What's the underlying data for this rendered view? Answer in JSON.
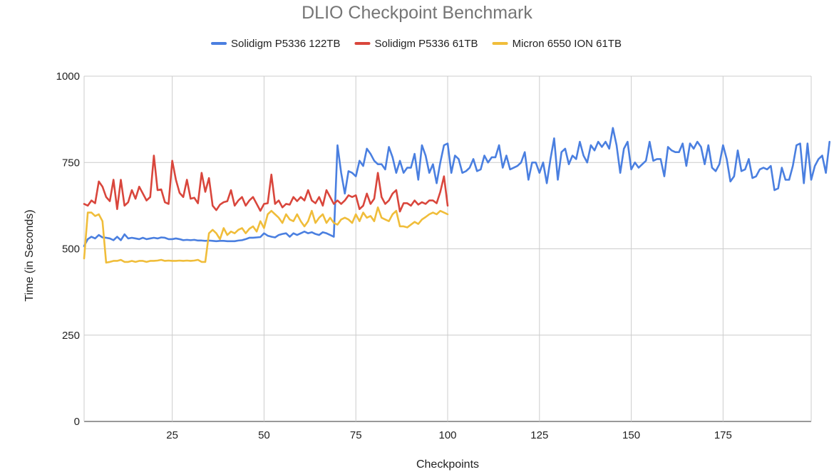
{
  "chart_data": {
    "type": "line",
    "title": "DLIO Checkpoint Benchmark",
    "xlabel": "Checkpoints",
    "ylabel": "Time (in Seconds)",
    "xlim": [
      1,
      199
    ],
    "ylim": [
      0,
      1000
    ],
    "x_ticks": [
      "25",
      "50",
      "75",
      "100",
      "125",
      "150",
      "175"
    ],
    "x_tick_values": [
      25,
      50,
      75,
      100,
      125,
      150,
      175
    ],
    "y_ticks": [
      "0",
      "250",
      "500",
      "750",
      "1000"
    ],
    "y_tick_values": [
      0,
      250,
      500,
      750,
      1000
    ],
    "grid": true,
    "legend_position": "top",
    "series": [
      {
        "name": "Solidigm P5336 122TB",
        "color": "#4a7fe0",
        "values": [
          508,
          528,
          535,
          530,
          540,
          533,
          532,
          530,
          525,
          535,
          525,
          542,
          530,
          532,
          530,
          528,
          532,
          528,
          530,
          532,
          530,
          533,
          532,
          528,
          528,
          530,
          528,
          525,
          526,
          525,
          526,
          524,
          524,
          523,
          524,
          523,
          522,
          523,
          523,
          522,
          522,
          522,
          524,
          525,
          528,
          532,
          532,
          533,
          534,
          545,
          538,
          535,
          533,
          540,
          543,
          545,
          535,
          545,
          540,
          545,
          550,
          545,
          548,
          543,
          540,
          548,
          545,
          540,
          535,
          800,
          720,
          660,
          725,
          720,
          710,
          755,
          740,
          790,
          775,
          755,
          745,
          745,
          730,
          795,
          765,
          720,
          755,
          720,
          735,
          735,
          775,
          700,
          800,
          770,
          720,
          745,
          690,
          750,
          800,
          805,
          720,
          770,
          760,
          720,
          725,
          735,
          760,
          725,
          730,
          770,
          750,
          765,
          765,
          800,
          735,
          770,
          730,
          735,
          740,
          750,
          780,
          700,
          750,
          750,
          720,
          750,
          690,
          760,
          820,
          700,
          780,
          790,
          745,
          770,
          760,
          810,
          770,
          750,
          800,
          785,
          810,
          795,
          810,
          790,
          850,
          800,
          720,
          790,
          810,
          730,
          750,
          735,
          745,
          755,
          810,
          755,
          760,
          760,
          710,
          795,
          785,
          780,
          780,
          805,
          740,
          805,
          790,
          810,
          795,
          745,
          800,
          735,
          725,
          745,
          800,
          760,
          695,
          710,
          785,
          725,
          730,
          760,
          705,
          710,
          730,
          735,
          730,
          740,
          670,
          675,
          735,
          700,
          700,
          740,
          800,
          805,
          690,
          805,
          700,
          740,
          760,
          770,
          720,
          810
        ]
      },
      {
        "name": "Solidigm P5336 61TB",
        "color": "#d9463c",
        "values": [
          630,
          625,
          640,
          632,
          695,
          680,
          650,
          638,
          700,
          615,
          700,
          625,
          635,
          670,
          645,
          680,
          660,
          640,
          650,
          770,
          670,
          672,
          635,
          630,
          755,
          700,
          662,
          650,
          700,
          645,
          648,
          632,
          720,
          665,
          705,
          625,
          612,
          628,
          635,
          638,
          670,
          625,
          640,
          650,
          625,
          640,
          650,
          630,
          610,
          630,
          632,
          715,
          630,
          640,
          620,
          630,
          628,
          650,
          638,
          650,
          640,
          670,
          640,
          632,
          650,
          625,
          670,
          650,
          630,
          640,
          630,
          640,
          655,
          650,
          655,
          615,
          625,
          660,
          630,
          645,
          720,
          650,
          630,
          640,
          660,
          670,
          608,
          632,
          632,
          625,
          640,
          628,
          635,
          630,
          640,
          640,
          632,
          665,
          710,
          625
        ]
      },
      {
        "name": "Micron 6550 ION 61TB",
        "color": "#f0bd3a",
        "values": [
          472,
          605,
          605,
          595,
          600,
          580,
          460,
          462,
          465,
          465,
          468,
          462,
          462,
          465,
          462,
          465,
          465,
          462,
          465,
          465,
          466,
          468,
          465,
          466,
          465,
          465,
          466,
          465,
          466,
          465,
          466,
          468,
          462,
          462,
          545,
          555,
          545,
          528,
          560,
          540,
          550,
          545,
          555,
          560,
          545,
          558,
          565,
          550,
          580,
          560,
          600,
          610,
          600,
          590,
          575,
          600,
          585,
          580,
          600,
          580,
          565,
          580,
          610,
          575,
          590,
          600,
          575,
          590,
          575,
          570,
          585,
          590,
          585,
          575,
          600,
          580,
          605,
          590,
          595,
          580,
          620,
          590,
          585,
          580,
          600,
          610,
          565,
          565,
          562,
          570,
          578,
          572,
          585,
          592,
          600,
          605,
          600,
          610,
          605,
          600
        ]
      }
    ]
  }
}
